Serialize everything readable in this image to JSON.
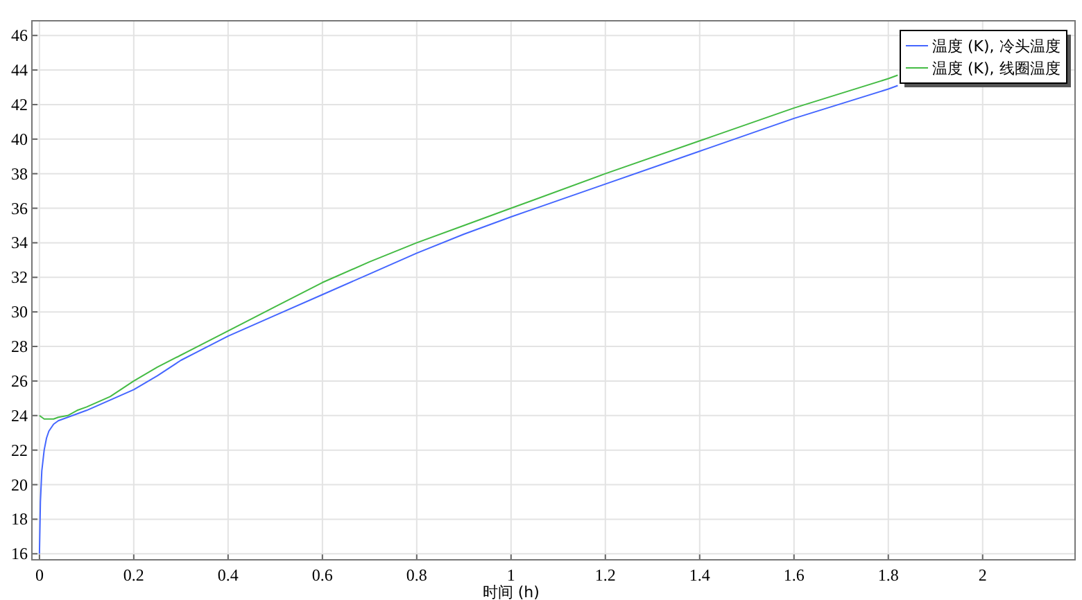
{
  "chart_data": {
    "type": "line",
    "xlabel": "时间 (h)",
    "xlim": [
      -0.016,
      2.196
    ],
    "ylim": [
      15.65,
      46.85
    ],
    "xticks": [
      0,
      0.2,
      0.4,
      0.6,
      0.8,
      1,
      1.2,
      1.4,
      1.6,
      1.8,
      2
    ],
    "yticks": [
      16,
      18,
      20,
      22,
      24,
      26,
      28,
      30,
      32,
      34,
      36,
      38,
      40,
      42,
      44,
      46
    ],
    "grid": true,
    "legend": "top right",
    "marker": "none",
    "line_style": "solid",
    "series": [
      {
        "name": "温度 (K), 冷头温度",
        "color": "#4466ff",
        "x": [
          0,
          0.002,
          0.005,
          0.01,
          0.015,
          0.02,
          0.03,
          0.04,
          0.06,
          0.08,
          0.1,
          0.15,
          0.2,
          0.25,
          0.3,
          0.4,
          0.5,
          0.6,
          0.7,
          0.8,
          0.9,
          1.0,
          1.2,
          1.4,
          1.6,
          1.8,
          1.82
        ],
        "values": [
          16,
          19,
          20.8,
          22,
          22.7,
          23.1,
          23.5,
          23.7,
          23.9,
          24.1,
          24.3,
          24.9,
          25.5,
          26.3,
          27.2,
          28.6,
          29.8,
          31.0,
          32.2,
          33.4,
          34.5,
          35.5,
          37.4,
          39.3,
          41.2,
          42.9,
          43.1
        ]
      },
      {
        "name": "温度 (K), 线圈温度",
        "color": "#44bb44",
        "x": [
          0,
          0.005,
          0.01,
          0.02,
          0.03,
          0.04,
          0.06,
          0.08,
          0.1,
          0.15,
          0.2,
          0.25,
          0.3,
          0.4,
          0.5,
          0.6,
          0.7,
          0.8,
          0.9,
          1.0,
          1.2,
          1.4,
          1.6,
          1.8,
          1.82
        ],
        "values": [
          24,
          23.9,
          23.8,
          23.8,
          23.8,
          23.9,
          24.0,
          24.3,
          24.5,
          25.1,
          26.0,
          26.8,
          27.5,
          28.9,
          30.3,
          31.7,
          32.9,
          34.0,
          35.0,
          36.0,
          38.0,
          39.9,
          41.8,
          43.5,
          43.7
        ]
      }
    ]
  }
}
